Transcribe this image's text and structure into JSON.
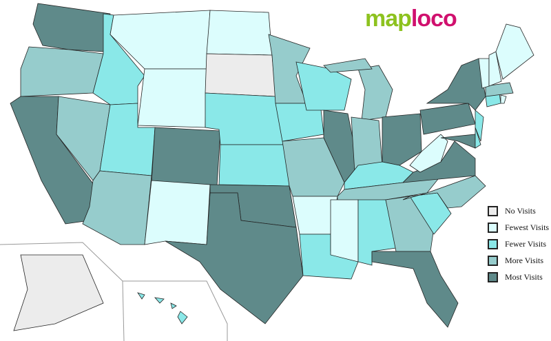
{
  "logo": {
    "part1": "map",
    "part2": "loco"
  },
  "legend": [
    {
      "key": "none",
      "label": "No Visits",
      "color": "#ececec"
    },
    {
      "key": "fewest",
      "label": "Fewest Visits",
      "color": "#dcfdfd"
    },
    {
      "key": "fewer",
      "label": "Fewer Visits",
      "color": "#8ae8e8"
    },
    {
      "key": "more",
      "label": "More Visits",
      "color": "#96cccc"
    },
    {
      "key": "most",
      "label": "Most Visits",
      "color": "#5f8a8a"
    }
  ],
  "map_data": {
    "WA": "most",
    "OR": "more",
    "CA": "most",
    "NV": "more",
    "ID": "fewer",
    "MT": "fewest",
    "WY": "fewest",
    "UT": "fewer",
    "AZ": "more",
    "CO": "most",
    "NM": "fewest",
    "ND": "fewest",
    "SD": "none",
    "NE": "fewer",
    "KS": "fewer",
    "OK": "most",
    "TX": "most",
    "MN": "more",
    "IA": "fewer",
    "MO": "more",
    "AR": "fewest",
    "LA": "fewer",
    "WI": "fewer",
    "IL": "most",
    "MI": "more",
    "IN": "more",
    "OH": "most",
    "KY": "fewer",
    "TN": "more",
    "MS": "fewest",
    "AL": "fewer",
    "GA": "more",
    "FL": "most",
    "SC": "fewer",
    "NC": "more",
    "VA": "most",
    "WV": "fewest",
    "PA": "most",
    "NY": "most",
    "MD": "most",
    "DE": "fewer",
    "NJ": "fewer",
    "CT": "fewer",
    "RI": "fewest",
    "MA": "more",
    "VT": "fewest",
    "NH": "fewest",
    "ME": "fewest",
    "AK": "none",
    "HI": "fewer"
  }
}
